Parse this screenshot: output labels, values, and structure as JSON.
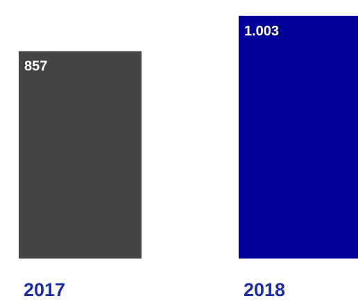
{
  "chart_data": {
    "type": "bar",
    "categories": [
      "2017",
      "2018"
    ],
    "values": [
      857,
      1003
    ],
    "value_labels": [
      "857",
      "1.003"
    ],
    "bar_colors": [
      "#444444",
      "#000099"
    ],
    "category_label_color": "#1a2aa8",
    "ylim": [
      0,
      1060
    ],
    "grid": false,
    "legend": "none"
  }
}
